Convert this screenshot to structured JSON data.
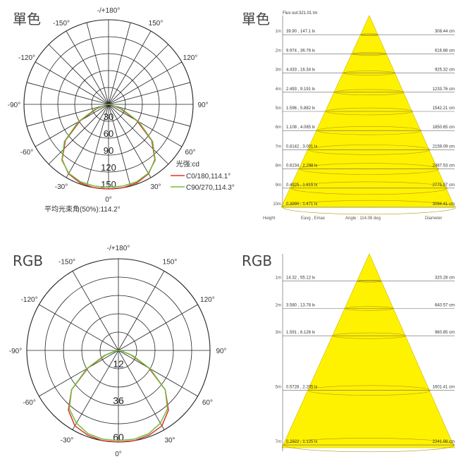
{
  "chart_data": [
    {
      "type": "polar",
      "title": "單色",
      "angle_labels": [
        "-/+180°",
        "150°",
        "-150°",
        "120°",
        "-120°",
        "90°",
        "-90°",
        "60°",
        "-60°",
        "30°",
        "-30°",
        "0°"
      ],
      "radial_ticks": [
        30,
        60,
        90,
        120,
        150
      ],
      "rmax": 150,
      "unit_label": "光强:cd",
      "series": [
        {
          "name": "C0/180,114.1°",
          "color": "#e03030",
          "angles": [
            -90,
            -80,
            -70,
            -60,
            -50,
            -40,
            -30,
            -20,
            -10,
            0,
            10,
            20,
            30,
            40,
            50,
            60,
            70,
            80,
            90
          ],
          "values": [
            0,
            4,
            22,
            58,
            100,
            128,
            142,
            148,
            150,
            150,
            150,
            148,
            142,
            128,
            100,
            58,
            22,
            4,
            0
          ]
        },
        {
          "name": "C90/270,114.3°",
          "color": "#6cbf3c",
          "angles": [
            -90,
            -80,
            -70,
            -60,
            -50,
            -40,
            -30,
            -20,
            -10,
            0,
            10,
            20,
            30,
            40,
            50,
            60,
            70,
            80,
            90
          ],
          "values": [
            0,
            5,
            26,
            62,
            102,
            129,
            141,
            146,
            147,
            147,
            147,
            146,
            141,
            129,
            102,
            62,
            26,
            5,
            0
          ]
        }
      ],
      "footer": "平均光束角(50%):114.2°"
    },
    {
      "type": "beam-cone",
      "title": "單色",
      "flux": "Flux out:321.01 lm",
      "rows": [
        {
          "height": "1m",
          "value": "39.90 , 147.1 lx",
          "diameter": "308.44 cm"
        },
        {
          "height": "2m",
          "value": "9.974 , 36.76 lx",
          "diameter": "616.88 cm"
        },
        {
          "height": "3m",
          "value": "4.433 , 16.34 lx",
          "diameter": "925.32 cm"
        },
        {
          "height": "4m",
          "value": "2.493 , 9.191 lx",
          "diameter": "1233.76 cm"
        },
        {
          "height": "5m",
          "value": "1.596 , 5.882 lx",
          "diameter": "1542.21 cm"
        },
        {
          "height": "6m",
          "value": "1.108 , 4.085 lx",
          "diameter": "1850.65 cm"
        },
        {
          "height": "7m",
          "value": "0.8142 , 3.001 lx",
          "diameter": "2159.09 cm"
        },
        {
          "height": "8m",
          "value": "0.6234 , 2.298 lx",
          "diameter": "2467.53 cm"
        },
        {
          "height": "9m",
          "value": "0.4925 , 1.815 lx",
          "diameter": "2775.97 cm"
        },
        {
          "height": "10m",
          "value": "0.3990 , 1.471 lx",
          "diameter": "3084.41 cm"
        }
      ],
      "footer": {
        "height": "Height",
        "values": "Eavg , Emax",
        "angle": "Angle : 114.08 deg",
        "diameter": "Diameter"
      }
    },
    {
      "type": "polar",
      "title": "RGB",
      "angle_labels": [
        "-/+180°",
        "150°",
        "-150°",
        "120°",
        "-120°",
        "90°",
        "-90°",
        "60°",
        "-60°",
        "30°",
        "-30°",
        "0°"
      ],
      "radial_ticks": [
        12,
        24,
        36,
        48,
        60
      ],
      "radial_labels": [
        12,
        36,
        60
      ],
      "rmax": 60,
      "series": [
        {
          "color": "#e03030",
          "angles": [
            -90,
            -80,
            -70,
            -60,
            -50,
            -40,
            -30,
            -20,
            -10,
            0,
            10,
            20,
            30,
            40,
            50,
            60,
            70,
            80,
            90
          ],
          "values": [
            0,
            2,
            9,
            23,
            40,
            51,
            57,
            59,
            60,
            60,
            60,
            59,
            57,
            51,
            40,
            23,
            9,
            2,
            0
          ]
        },
        {
          "color": "#6cbf3c",
          "angles": [
            -90,
            -80,
            -70,
            -60,
            -50,
            -40,
            -30,
            -20,
            -10,
            0,
            10,
            20,
            30,
            40,
            50,
            60,
            70,
            80,
            90
          ],
          "values": [
            0,
            2,
            10,
            24,
            40,
            50,
            55,
            58,
            59,
            59,
            59,
            58,
            55,
            50,
            40,
            24,
            10,
            2,
            0
          ]
        }
      ]
    },
    {
      "type": "beam-cone",
      "title": "RGB",
      "rows": [
        {
          "height": "1m",
          "value": "14.32 , 55.12 lx",
          "diameter": "320.28 cm"
        },
        {
          "height": "2m",
          "value": "3.580 , 13.78 lx",
          "diameter": "640.57 cm"
        },
        {
          "height": "3m",
          "value": "1.591 , 6.126 lx",
          "diameter": "960.85 cm"
        },
        {
          "height": "5m",
          "value": "0.5728 , 2.205 lx",
          "diameter": "1601.41 cm"
        },
        {
          "height": "7m",
          "value": "0.2922 , 1.125 lx",
          "diameter": "2241.98 cm"
        }
      ]
    }
  ]
}
